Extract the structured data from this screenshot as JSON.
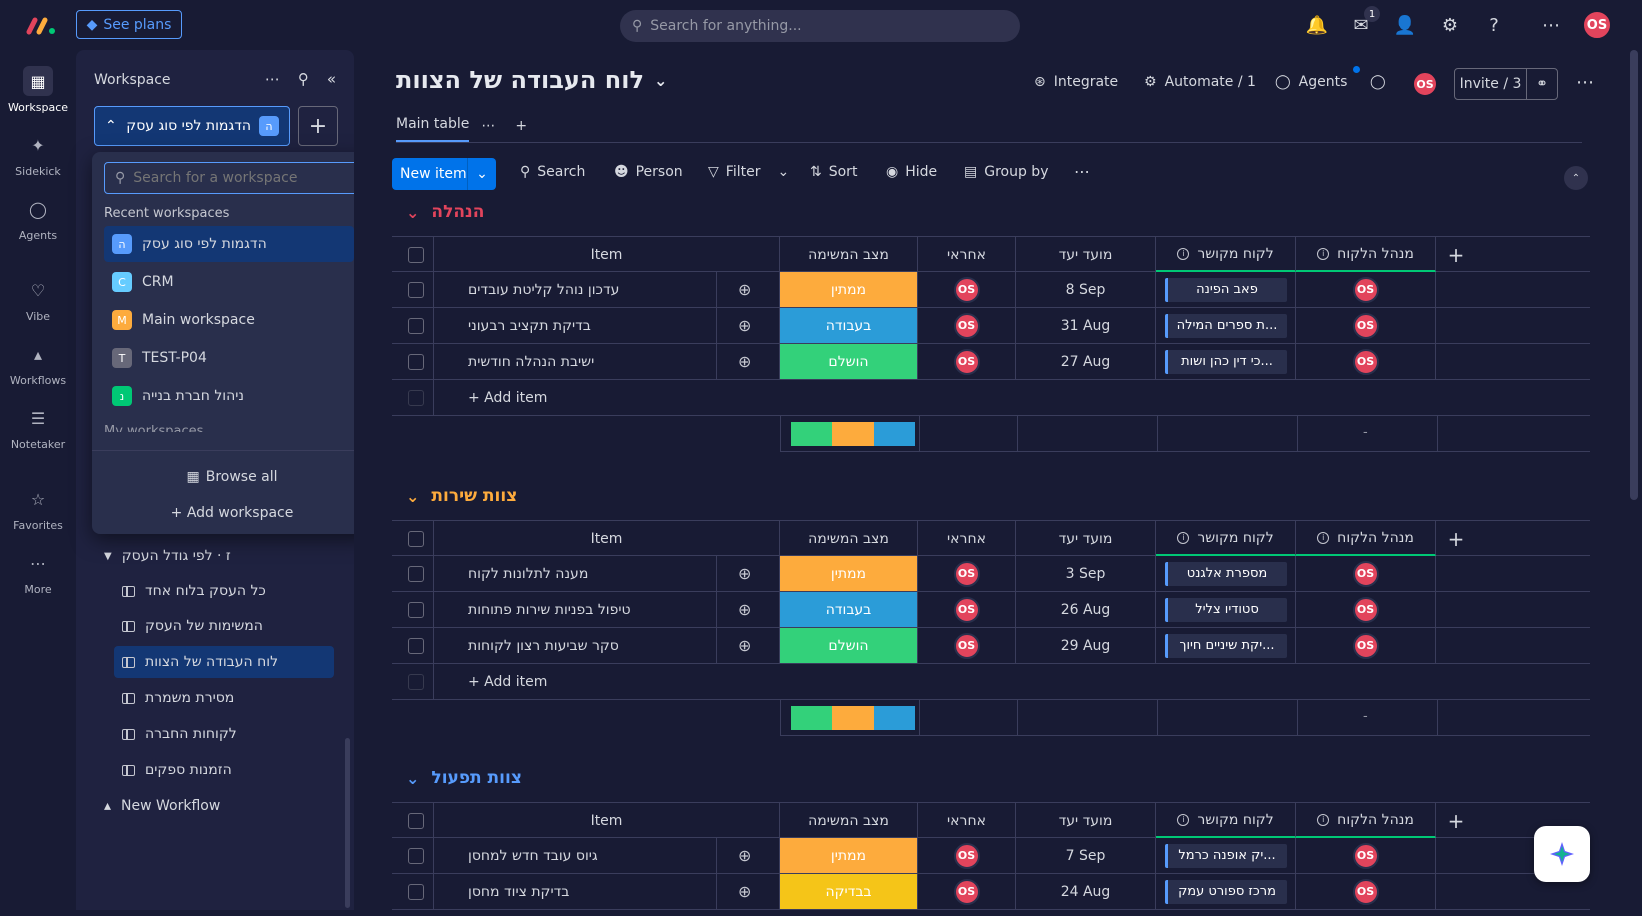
{
  "topbar": {
    "see_plans": "See plans",
    "search_placeholder": "Search for anything...",
    "inbox_badge": "1",
    "user_initials": "OS"
  },
  "rail": {
    "items": [
      {
        "label": "Workspace",
        "icon": "grid-icon",
        "active": true
      },
      {
        "label": "Sidekick",
        "icon": "sparkle-icon"
      },
      {
        "label": "Agents",
        "icon": "agent-icon"
      },
      {
        "label": "Vibe",
        "icon": "heart-icon"
      },
      {
        "label": "Workflows",
        "icon": "workflow-icon"
      },
      {
        "label": "Notetaker",
        "icon": "waveform-icon"
      },
      {
        "label": "Favorites",
        "icon": "star-icon"
      },
      {
        "label": "More",
        "icon": "more-icon"
      }
    ]
  },
  "sidepanel": {
    "title": "Workspace",
    "selected_workspace": "הדגמות לפי סוג עסק",
    "selected_letter": "ה",
    "folder": "ז · לפי גודל העסק",
    "boards": [
      "כל העסק בלוח אחד",
      "המשימות של העסק",
      "לוח העבודה של הצוות",
      "מסירת משמרת",
      "לקוחות החברה",
      "הזמנות ספקים"
    ],
    "new_workflow": "New Workflow"
  },
  "dropdown": {
    "search_placeholder": "Search for a workspace",
    "section": "Recent workspaces",
    "items": [
      {
        "name": "הדגמות לפי סוג עסק",
        "letter": "ה",
        "color": "#579bfc"
      },
      {
        "name": "CRM",
        "letter": "C",
        "color": "#66ccff"
      },
      {
        "name": "Main workspace",
        "letter": "M",
        "color": "#fdab3d"
      },
      {
        "name": "TEST-P04",
        "letter": "T",
        "color": "#676879"
      },
      {
        "name": "ניהול חברת בנייה",
        "letter": "נ",
        "color": "#00c875"
      }
    ],
    "cut_section": "My workspaces",
    "browse_all": "Browse all",
    "add_workspace": "+ Add workspace"
  },
  "board": {
    "title": "לוח העבודה של הצוות",
    "integrate": "Integrate",
    "automate": "Automate / 1",
    "agents": "Agents",
    "invite": "Invite / 3",
    "tab_main": "Main table",
    "new_item": "New item",
    "toolbar": {
      "search": "Search",
      "person": "Person",
      "filter": "Filter",
      "sort": "Sort",
      "hide": "Hide",
      "group_by": "Group by"
    }
  },
  "columns": {
    "item": "Item",
    "status": "מצב המשימה",
    "owner": "אחראי",
    "due": "מועד יעד",
    "client": "לקוח מקושר",
    "manager": "מנהל הלקוח"
  },
  "add_item": "+ Add item",
  "summary_dash": "-",
  "status_colors": {
    "ממתין": "#fdab3d",
    "בעבודה": "#2b9cd8",
    "הושלם": "#33d17a",
    "בבדיקה": "#f5c518"
  },
  "groups": [
    {
      "name": "הנהלה",
      "color": "#e2445c",
      "rows": [
        {
          "item": "עדכון נוהל קליטת עובדים",
          "status": "ממתין",
          "owner": "OS",
          "due": "8 Sep",
          "client": "פאב הפינה",
          "manager": "OS"
        },
        {
          "item": "בדיקת תקציב רבעוני",
          "status": "בעבודה",
          "owner": "OS",
          "due": "31 Aug",
          "client": "...ת ספרים המילה",
          "manager": "OS"
        },
        {
          "item": "ישיבת הנהלה חודשית",
          "status": "הושלם",
          "owner": "OS",
          "due": "27 Aug",
          "client": "...כי דין כהן ושות",
          "manager": "OS"
        }
      ]
    },
    {
      "name": "צוות שירות",
      "color": "#fdab3d",
      "rows": [
        {
          "item": "מענה לתלונות לקוח",
          "status": "ממתין",
          "owner": "OS",
          "due": "3 Sep",
          "client": "מספרת אלגנט",
          "manager": "OS"
        },
        {
          "item": "טיפול בפניות שירות פתוחות",
          "status": "בעבודה",
          "owner": "OS",
          "due": "26 Aug",
          "client": "סטודיו צליל",
          "manager": "OS"
        },
        {
          "item": "סקר שביעות רצון לקוחות",
          "status": "הושלם",
          "owner": "OS",
          "due": "29 Aug",
          "client": "...יקת שיניים חיוך",
          "manager": "OS"
        }
      ]
    },
    {
      "name": "צוות תפעול",
      "color": "#579bfc",
      "rows": [
        {
          "item": "גיוס עובד חדש למחסן",
          "status": "ממתין",
          "owner": "OS",
          "due": "7 Sep",
          "client": "...יק אופנה כרמל",
          "manager": "OS"
        },
        {
          "item": "בדיקת ציוד מחסן",
          "status": "בבדיקה",
          "owner": "OS",
          "due": "24 Aug",
          "client": "מרכז ספורט עמק",
          "manager": "OS"
        }
      ]
    }
  ]
}
